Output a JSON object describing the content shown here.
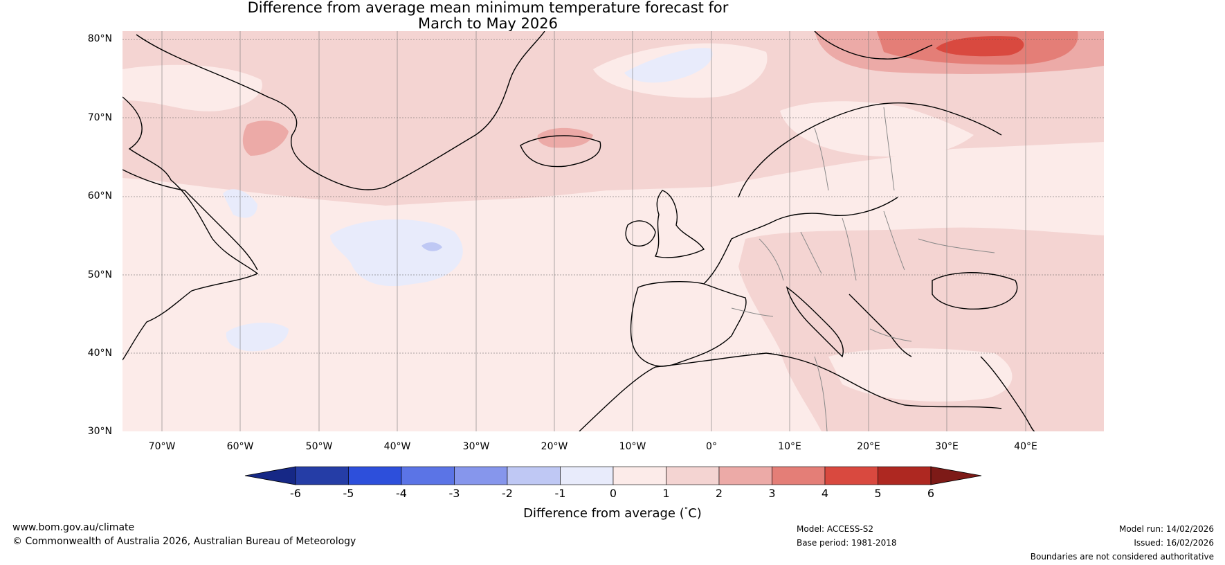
{
  "title": {
    "line1": "Difference from average mean minimum temperature forecast for",
    "line2": "March to May 2026"
  },
  "map": {
    "latitude_labels": [
      "80°N",
      "70°N",
      "60°N",
      "50°N",
      "40°N",
      "30°N"
    ],
    "longitude_labels": [
      "70°W",
      "60°W",
      "50°W",
      "40°W",
      "30°W",
      "20°W",
      "10°W",
      "0°",
      "10°E",
      "20°E",
      "30°E",
      "40°E"
    ]
  },
  "colorbar": {
    "labels": [
      "-6",
      "-5",
      "-4",
      "-3",
      "-2",
      "-1",
      "0",
      "1",
      "2",
      "3",
      "4",
      "5",
      "6"
    ],
    "colors": [
      "#253da6",
      "#2d4fdb",
      "#5b74e6",
      "#8696ec",
      "#bfc8f4",
      "#e8ebfb",
      "#fcebe9",
      "#f4d4d2",
      "#ecaaa7",
      "#e47e77",
      "#d9493f",
      "#ae2821"
    ],
    "low_extend_color": "#162886",
    "high_extend_color": "#7d1a17",
    "title": "Difference from average (",
    "unit_degree": "°",
    "unit_letter": "C",
    "unit_close": ")"
  },
  "footer": {
    "website": "www.bom.gov.au/climate",
    "copyright": "© Commonwealth of Australia 2026, Australian Bureau of Meteorology",
    "model": "Model: ACCESS-S2",
    "base_period": "Base period: 1981-2018",
    "model_run": "Model run: 14/02/2026",
    "issued": "Issued: 16/02/2026",
    "disclaimer": "Boundaries are not considered authoritative"
  }
}
